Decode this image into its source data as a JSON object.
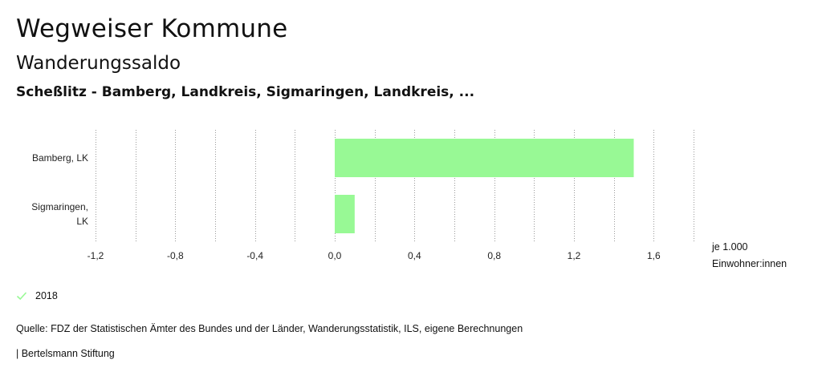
{
  "header": {
    "title": "Wegweiser Kommune",
    "subtitle": "Wanderungssaldo",
    "selection": "Scheßlitz - Bamberg, Landkreis, Sigmaringen, Landkreis, ..."
  },
  "chart_data": {
    "type": "bar",
    "orientation": "horizontal",
    "categories": [
      "Bamberg, LK",
      "Sigmaringen, LK"
    ],
    "category_lines": [
      [
        "Bamberg, LK"
      ],
      [
        "Sigmaringen,",
        "LK"
      ]
    ],
    "series": [
      {
        "name": "2018",
        "values": [
          1.5,
          0.1
        ],
        "color": "#98f995"
      }
    ],
    "xlim": [
      -1.2,
      1.8
    ],
    "xticks": [
      -1.2,
      -0.8,
      -0.4,
      0.0,
      0.4,
      0.8,
      1.2,
      1.6
    ],
    "xtick_labels": [
      "-1,2",
      "-0,8",
      "-0,4",
      "0,0",
      "0,4",
      "0,8",
      "1,2",
      "1,6"
    ],
    "grid": true,
    "unit_label_lines": [
      "je 1.000",
      "Einwohner:innen"
    ]
  },
  "legend": {
    "label": "2018",
    "color": "#98f995"
  },
  "footer": {
    "source": "Quelle: FDZ der Statistischen Ämter des Bundes und der Länder, Wanderungsstatistik, ILS, eigene Berechnungen",
    "publisher": "| Bertelsmann Stiftung"
  }
}
